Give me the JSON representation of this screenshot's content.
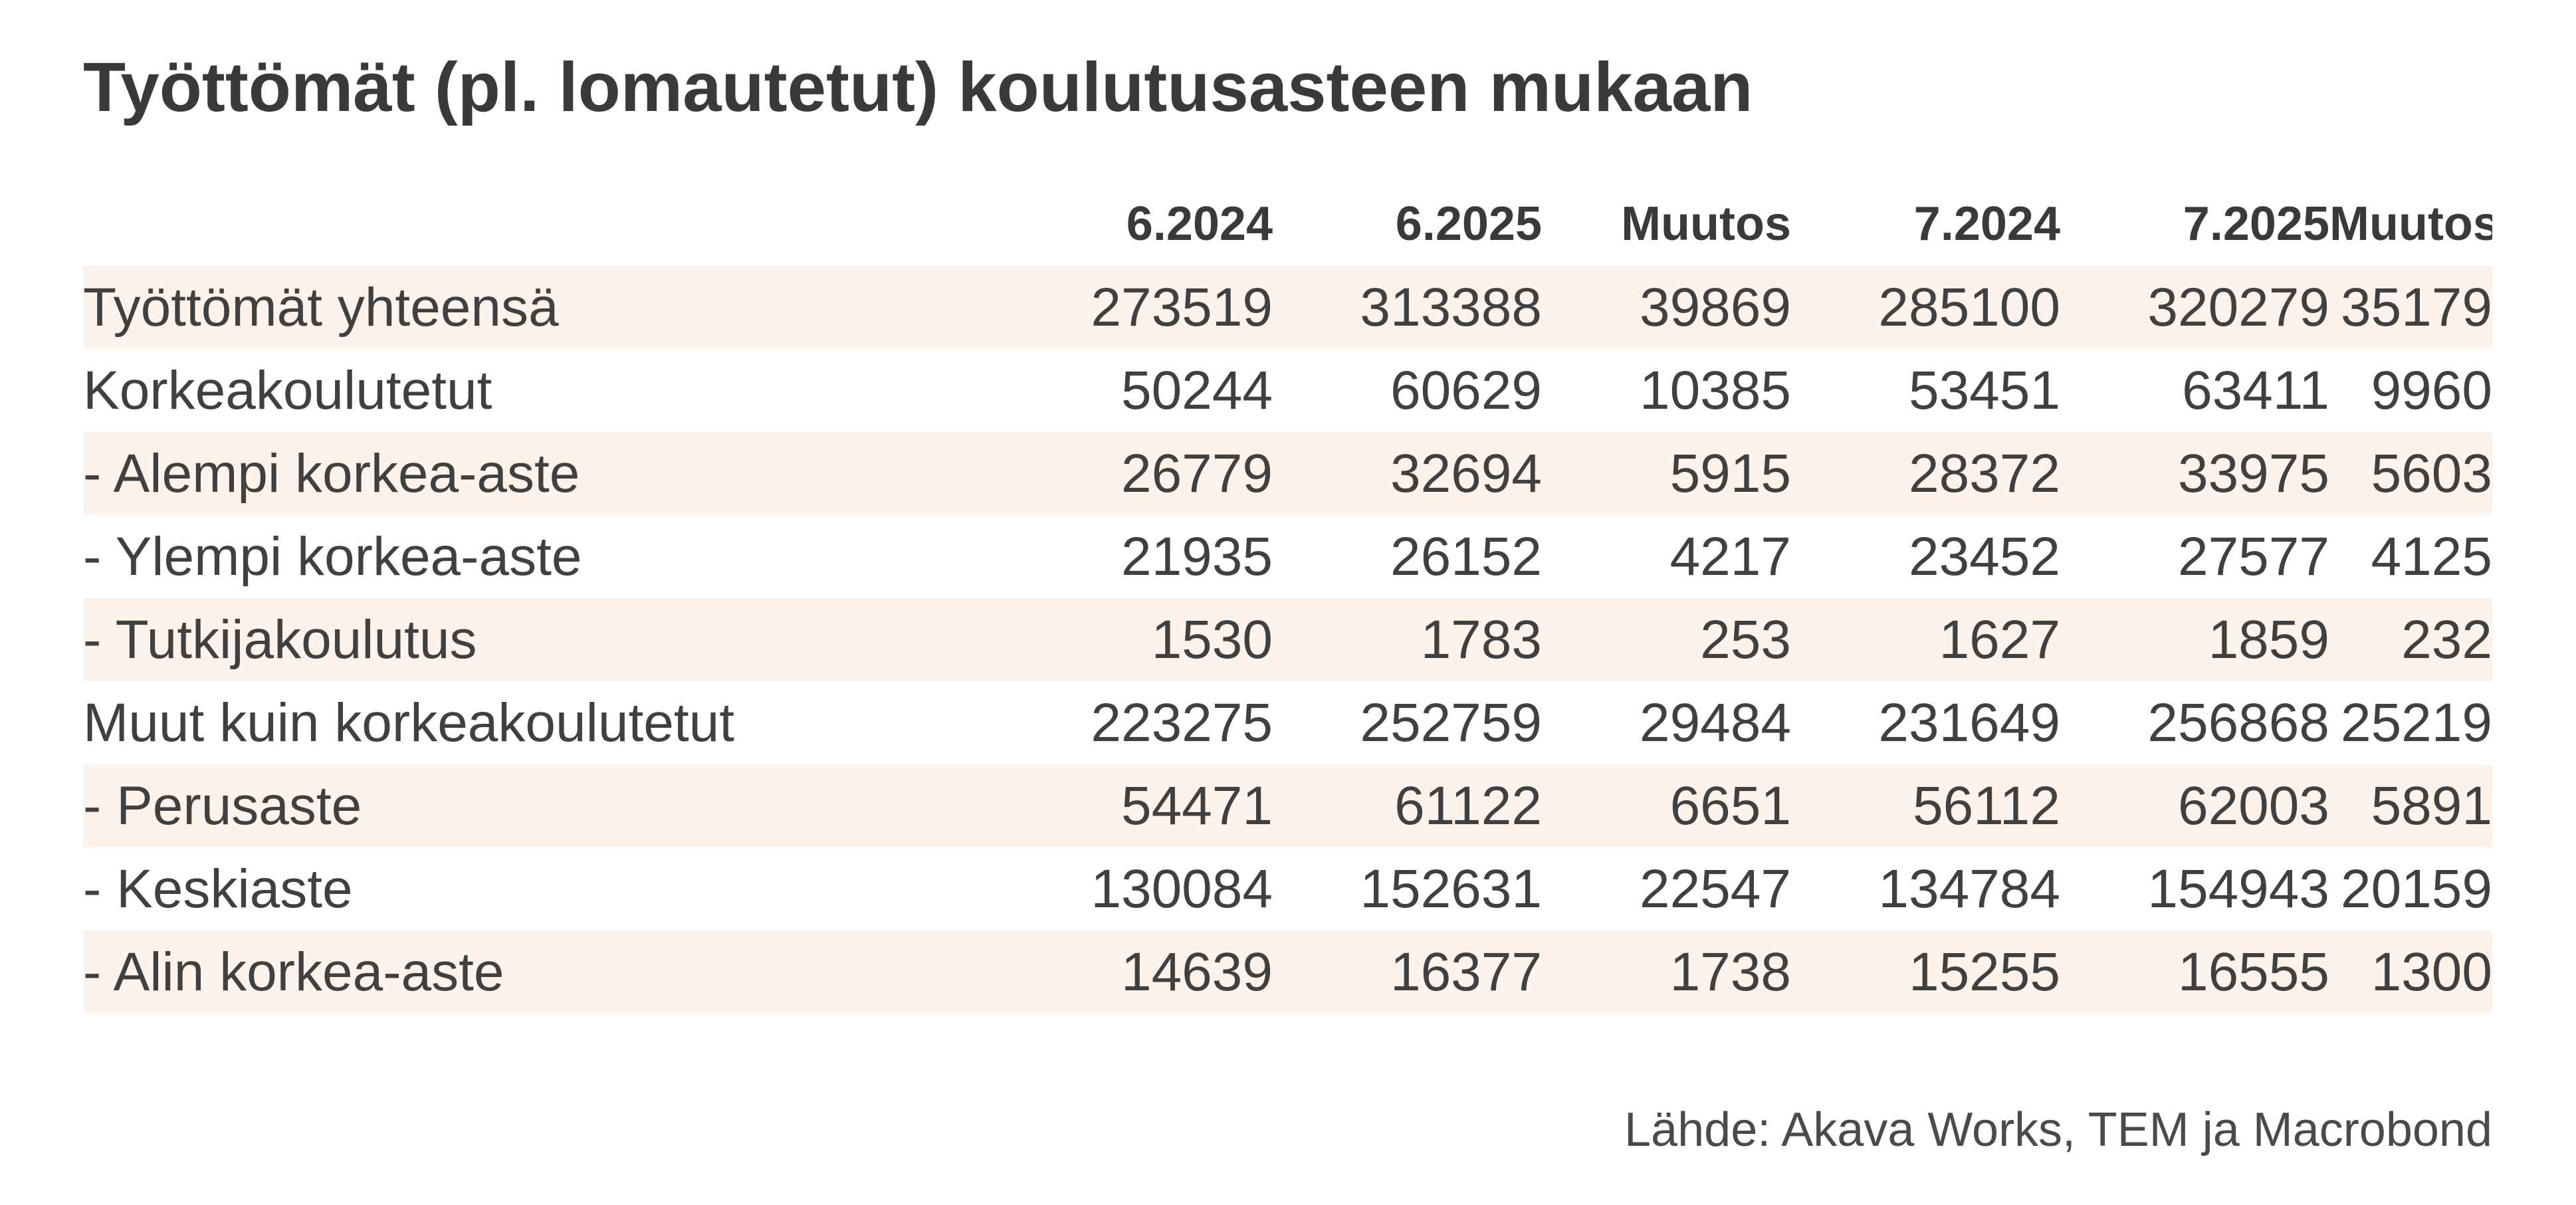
{
  "title": "Työttömät (pl. lomautetut) koulutusasteen mukaan",
  "source": "Lähde: Akava Works, TEM ja Macrobond",
  "colors": {
    "row_shade": "#fdf3ea",
    "text": "#404040"
  },
  "chart_data": {
    "type": "table",
    "title": "Työttömät (pl. lomautetut) koulutusasteen mukaan",
    "columns": [
      "6.2024",
      "6.2025",
      "Muutos",
      "7.2024",
      "7.2025",
      "Muutos"
    ],
    "rows": [
      {
        "label": "Työttömät yhteensä",
        "values": [
          "273519",
          "313388",
          "39869",
          "285100",
          "320279",
          "35179"
        ]
      },
      {
        "label": "Korkeakoulutetut",
        "values": [
          "50244",
          "60629",
          "10385",
          "53451",
          "63411",
          "9960"
        ]
      },
      {
        "label": "- Alempi korkea-aste",
        "values": [
          "26779",
          "32694",
          "5915",
          "28372",
          "33975",
          "5603"
        ]
      },
      {
        "label": "- Ylempi korkea-aste",
        "values": [
          "21935",
          "26152",
          "4217",
          "23452",
          "27577",
          "4125"
        ]
      },
      {
        "label": "- Tutkijakoulutus",
        "values": [
          "1530",
          "1783",
          "253",
          "1627",
          "1859",
          "232"
        ]
      },
      {
        "label": "Muut kuin korkeakoulutetut",
        "values": [
          "223275",
          "252759",
          "29484",
          "231649",
          "256868",
          "25219"
        ]
      },
      {
        "label": "- Perusaste",
        "values": [
          "54471",
          "61122",
          "6651",
          "56112",
          "62003",
          "5891"
        ]
      },
      {
        "label": "- Keskiaste",
        "values": [
          "130084",
          "152631",
          "22547",
          "134784",
          "154943",
          "20159"
        ]
      },
      {
        "label": "- Alin korkea-aste",
        "values": [
          "14639",
          "16377",
          "1738",
          "15255",
          "16555",
          "1300"
        ]
      }
    ]
  }
}
